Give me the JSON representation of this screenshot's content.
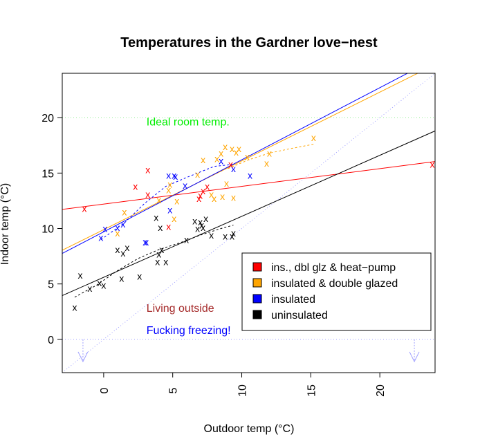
{
  "chart_data": {
    "type": "scatter",
    "title": "Temperatures in the Gardner love−nest",
    "xlabel": "Outdoor temp (°C)",
    "ylabel": "Indoor temp (°C)",
    "xlim": [
      -3,
      24
    ],
    "ylim": [
      -3,
      24
    ],
    "xticks": [
      0,
      5,
      10,
      15,
      20
    ],
    "yticks": [
      0,
      5,
      10,
      15,
      20
    ],
    "marker": "x",
    "series": [
      {
        "name": "ins., dbl glz & heat−pump",
        "color": "#ff0000",
        "points": [
          [
            -1.4,
            11.8
          ],
          [
            2.3,
            13.8
          ],
          [
            3.2,
            15.3
          ],
          [
            3.2,
            13.1
          ],
          [
            4.7,
            10.2
          ],
          [
            6.9,
            12.7
          ],
          [
            7.0,
            13.0
          ],
          [
            7.2,
            13.4
          ],
          [
            7.5,
            13.8
          ],
          [
            9.2,
            15.8
          ],
          [
            23.8,
            15.8
          ]
        ],
        "fit": {
          "slope": 0.16,
          "intercept": 12.2
        }
      },
      {
        "name": "insulated & double glazed",
        "color": "#ffa500",
        "points": [
          [
            1.0,
            9.6
          ],
          [
            1.5,
            11.5
          ],
          [
            4.0,
            12.6
          ],
          [
            4.7,
            13.5
          ],
          [
            4.8,
            14.0
          ],
          [
            5.1,
            10.9
          ],
          [
            5.3,
            12.5
          ],
          [
            6.8,
            14.9
          ],
          [
            7.2,
            16.2
          ],
          [
            7.8,
            13.1
          ],
          [
            8.0,
            12.7
          ],
          [
            8.2,
            16.3
          ],
          [
            8.5,
            16.8
          ],
          [
            8.6,
            12.9
          ],
          [
            8.8,
            17.4
          ],
          [
            8.9,
            14.1
          ],
          [
            9.3,
            17.2
          ],
          [
            9.4,
            12.8
          ],
          [
            9.6,
            16.9
          ],
          [
            9.8,
            17.2
          ],
          [
            10.4,
            16.5
          ],
          [
            11.8,
            15.9
          ],
          [
            12.0,
            16.8
          ],
          [
            15.2,
            18.2
          ]
        ],
        "fit": {
          "slope": 0.62,
          "intercept": 9.9
        }
      },
      {
        "name": "insulated",
        "color": "#0000ff",
        "points": [
          [
            -0.2,
            9.2
          ],
          [
            0.1,
            10.0
          ],
          [
            1.0,
            10.1
          ],
          [
            1.4,
            10.4
          ],
          [
            3.0,
            8.8
          ],
          [
            3.1,
            8.8
          ],
          [
            4.7,
            14.8
          ],
          [
            4.8,
            11.7
          ],
          [
            5.1,
            14.8
          ],
          [
            5.2,
            14.7
          ],
          [
            5.9,
            13.9
          ],
          [
            8.5,
            16.1
          ],
          [
            9.4,
            15.4
          ],
          [
            10.6,
            14.8
          ]
        ],
        "fit": {
          "slope": 0.65,
          "intercept": 9.7
        }
      },
      {
        "name": "uninsulated",
        "color": "#000000",
        "points": [
          [
            -2.1,
            2.9
          ],
          [
            -1.7,
            5.8
          ],
          [
            -1.0,
            4.6
          ],
          [
            -0.3,
            5.1
          ],
          [
            0.0,
            4.9
          ],
          [
            1.0,
            8.1
          ],
          [
            1.3,
            5.5
          ],
          [
            1.4,
            7.8
          ],
          [
            1.7,
            8.3
          ],
          [
            2.6,
            5.7
          ],
          [
            3.8,
            11.0
          ],
          [
            3.9,
            7.0
          ],
          [
            4.0,
            7.7
          ],
          [
            4.1,
            10.1
          ],
          [
            4.2,
            8.1
          ],
          [
            4.5,
            7.0
          ],
          [
            6.0,
            9.0
          ],
          [
            6.6,
            10.7
          ],
          [
            6.8,
            10.0
          ],
          [
            7.0,
            10.6
          ],
          [
            7.1,
            10.3
          ],
          [
            7.2,
            10.1
          ],
          [
            7.4,
            10.9
          ],
          [
            7.8,
            9.4
          ],
          [
            8.8,
            9.3
          ],
          [
            9.3,
            9.3
          ],
          [
            9.4,
            9.6
          ]
        ],
        "fit": {
          "slope": 0.55,
          "intercept": 5.6
        }
      }
    ],
    "reference_lines": {
      "identity": {
        "label": "y = x",
        "color": "#9f9fff"
      },
      "ideal": {
        "y": 20,
        "color": "#90ee90"
      },
      "freezing": {
        "y": 0,
        "color": "#9f9fff"
      }
    },
    "smoothers": [
      {
        "series": "insulated & double glazed",
        "color": "#ffa500",
        "points": [
          [
            9.0,
            15.4
          ],
          [
            10.5,
            16.2
          ],
          [
            12.0,
            16.8
          ],
          [
            13.5,
            17.2
          ],
          [
            15.2,
            17.6
          ]
        ]
      },
      {
        "series": "insulated",
        "color": "#0000ff",
        "points": [
          [
            -0.2,
            9.0
          ],
          [
            1.5,
            10.5
          ],
          [
            3.0,
            12.3
          ],
          [
            4.5,
            13.8
          ],
          [
            6.0,
            14.6
          ],
          [
            8.0,
            15.6
          ],
          [
            9.5,
            15.8
          ]
        ]
      },
      {
        "series": "uninsulated",
        "color": "#000000",
        "points": [
          [
            -2.1,
            3.8
          ],
          [
            -0.5,
            4.9
          ],
          [
            1.0,
            6.2
          ],
          [
            2.5,
            7.3
          ],
          [
            4.0,
            8.1
          ],
          [
            5.5,
            8.7
          ],
          [
            7.0,
            9.4
          ],
          [
            8.5,
            10.0
          ],
          [
            9.4,
            10.3
          ]
        ]
      }
    ],
    "arrows": {
      "x": [
        -1.5,
        22.5
      ],
      "from": 0,
      "to": -2,
      "color": "#9f9fff"
    },
    "annotations": [
      {
        "text": "Ideal room temp.",
        "x": 3.1,
        "y": 19.3,
        "color": "#00ee00"
      },
      {
        "text": "Living outside",
        "x": 3.1,
        "y": 2.5,
        "color": "#a52a2a"
      },
      {
        "text": "Fucking freezing!",
        "x": 3.1,
        "y": 0.5,
        "color": "#0000ff"
      }
    ],
    "legend": {
      "position": "bottom-right",
      "entries": [
        {
          "label": "ins., dbl glz & heat−pump",
          "color": "#ff0000"
        },
        {
          "label": "insulated & double glazed",
          "color": "#ffa500"
        },
        {
          "label": "insulated",
          "color": "#0000ff"
        },
        {
          "label": "uninsulated",
          "color": "#000000"
        }
      ]
    }
  }
}
